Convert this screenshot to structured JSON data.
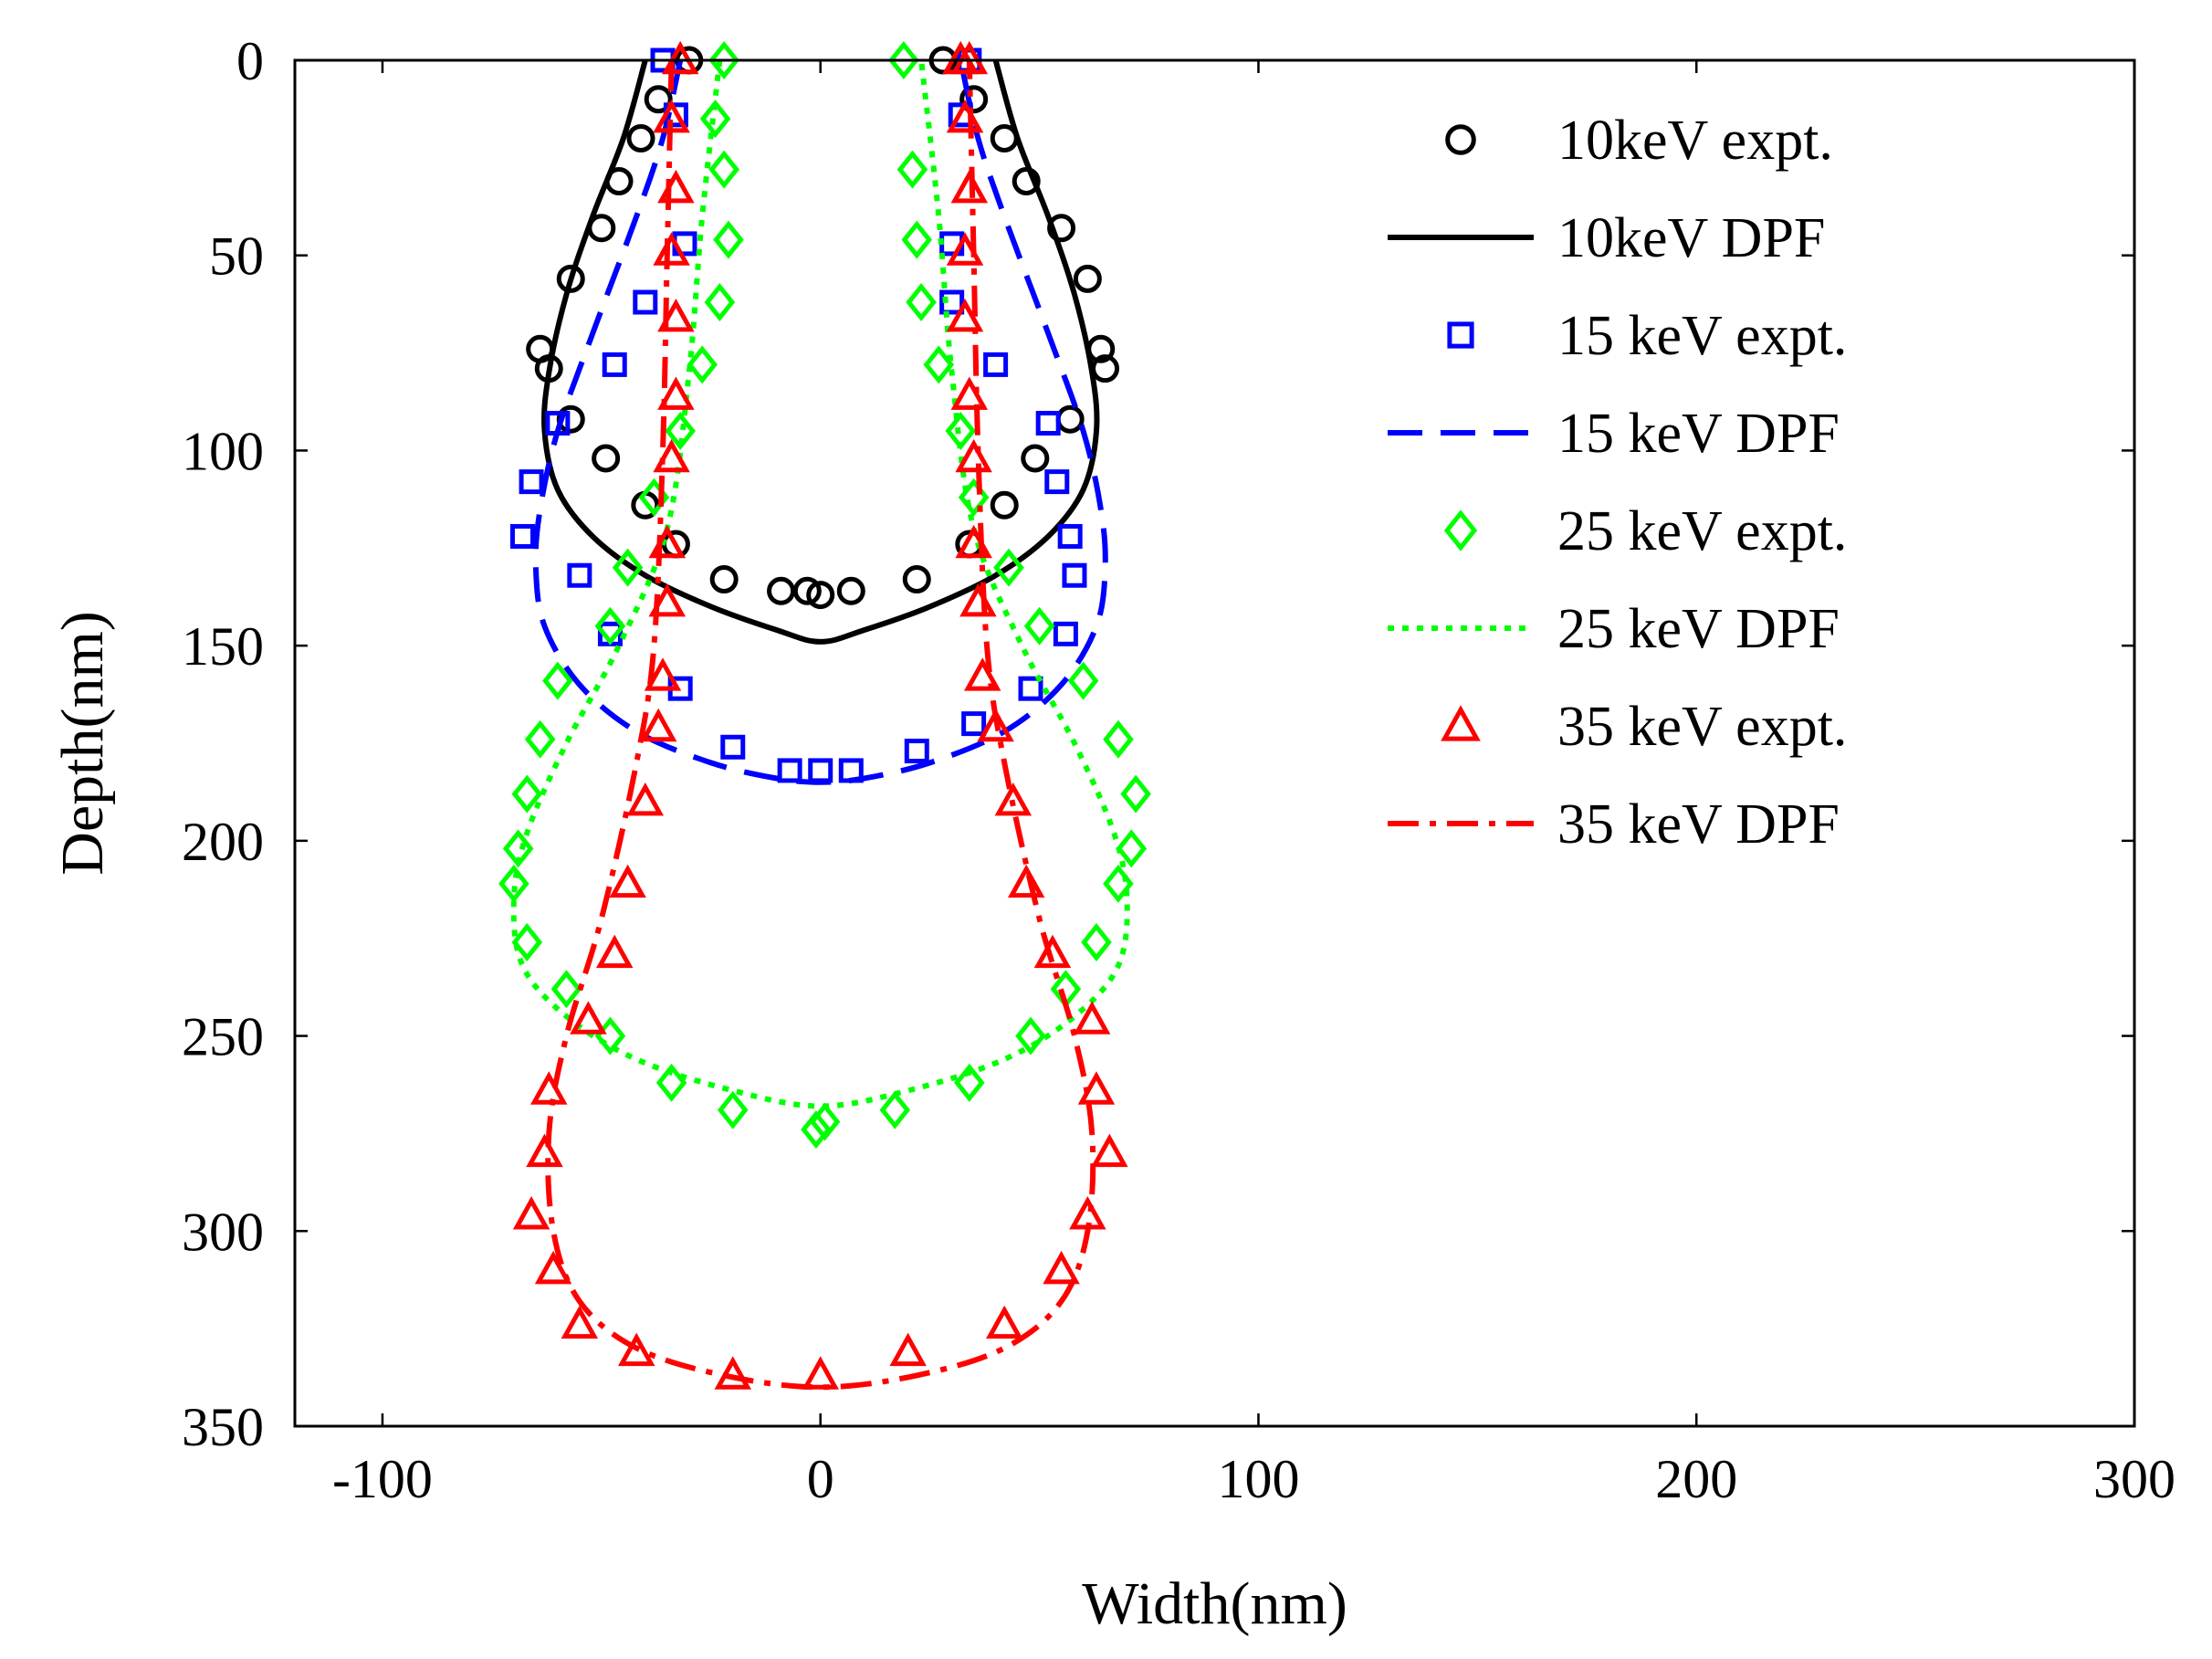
{
  "chart_data": {
    "type": "scatter",
    "title": "",
    "xlabel": "Width(nm)",
    "ylabel": "Depth(nm)",
    "xlim": [
      -120,
      300
    ],
    "ylim": [
      0,
      350
    ],
    "y_reversed": true,
    "x_ticks": [
      -100,
      0,
      100,
      200,
      300
    ],
    "y_ticks": [
      0,
      50,
      100,
      150,
      200,
      250,
      300,
      350
    ],
    "x_tick_labels": [
      "-100",
      "0",
      "100",
      "200",
      "300"
    ],
    "y_tick_labels": [
      "0",
      "50",
      "100",
      "150",
      "200",
      "250",
      "300",
      "350"
    ],
    "grid": false,
    "legend_position": "top-right",
    "series": [
      {
        "name": "10keV expt.",
        "kind": "marker",
        "marker": "circle",
        "color": "#000000",
        "x": [
          -30,
          -37,
          -41,
          -46,
          -50,
          -57,
          -64,
          -62,
          -57,
          -49,
          -40,
          -33,
          -22,
          -9,
          -3,
          0,
          7,
          22,
          34,
          42,
          49,
          57,
          65,
          64,
          61,
          55,
          47,
          42,
          35,
          28
        ],
        "y": [
          0,
          10,
          20,
          31,
          43,
          56,
          74,
          79,
          92,
          102,
          114,
          124,
          133,
          136,
          136,
          137,
          136,
          133,
          124,
          114,
          102,
          92,
          79,
          74,
          56,
          43,
          31,
          20,
          10,
          0
        ]
      },
      {
        "name": "10keV DPF",
        "kind": "line",
        "dash": "solid",
        "color": "#000000",
        "x": [
          -40,
          -45,
          -52,
          -58,
          -62,
          -63,
          -60,
          -52,
          -40,
          -25,
          -10,
          0,
          10,
          25,
          40,
          52,
          60,
          63,
          62,
          58,
          52,
          45,
          40
        ],
        "y": [
          0,
          20,
          40,
          60,
          80,
          95,
          110,
          122,
          132,
          140,
          146,
          149,
          146,
          140,
          132,
          122,
          110,
          95,
          80,
          60,
          40,
          20,
          0
        ],
        "smooth": true
      },
      {
        "name": "15 keV expt.",
        "kind": "marker",
        "marker": "square",
        "color": "#0000ff",
        "x": [
          -36,
          -33,
          -31,
          -40,
          -47,
          -60,
          -66,
          -68,
          -55,
          -48,
          -32,
          -20,
          -7,
          0,
          7,
          22,
          35,
          48,
          56,
          58,
          57,
          54,
          52,
          40,
          30,
          30,
          32,
          34
        ],
        "y": [
          0,
          14,
          47,
          62,
          78,
          93,
          108,
          122,
          132,
          147,
          161,
          176,
          182,
          182,
          182,
          177,
          170,
          161,
          147,
          132,
          122,
          108,
          93,
          78,
          62,
          47,
          14,
          0
        ]
      },
      {
        "name": "15 keV DPF",
        "kind": "line",
        "dash": "dash",
        "color": "#0000ff",
        "x": [
          -32,
          -36,
          -42,
          -52,
          -60,
          -64,
          -65,
          -63,
          -55,
          -42,
          -25,
          -10,
          0,
          10,
          25,
          42,
          55,
          63,
          65,
          64,
          60,
          52,
          42,
          36,
          32
        ],
        "y": [
          0,
          20,
          40,
          70,
          95,
          115,
          130,
          145,
          160,
          172,
          180,
          184,
          185,
          184,
          180,
          172,
          160,
          145,
          130,
          115,
          95,
          70,
          40,
          20,
          0
        ],
        "smooth": true
      },
      {
        "name": "25 keV expt.",
        "kind": "marker",
        "marker": "diamond",
        "color": "#00ff00",
        "x": [
          -22,
          -24,
          -22,
          -21,
          -23,
          -27,
          -32,
          -38,
          -44,
          -48,
          -60,
          -64,
          -67,
          -69,
          -70,
          -67,
          -58,
          -48,
          -34,
          -20,
          -1,
          1,
          17,
          34,
          48,
          56,
          63,
          68,
          71,
          72,
          68,
          60,
          50,
          43,
          35,
          32,
          27,
          23,
          22,
          21,
          19
        ],
        "y": [
          0,
          15,
          28,
          46,
          62,
          78,
          95,
          112,
          130,
          145,
          159,
          174,
          188,
          202,
          211,
          226,
          238,
          250,
          262,
          269,
          274,
          272,
          269,
          262,
          250,
          238,
          226,
          211,
          202,
          188,
          174,
          159,
          145,
          130,
          112,
          95,
          78,
          62,
          46,
          28,
          0
        ]
      },
      {
        "name": "25 keV DPF",
        "kind": "line",
        "dash": "dot",
        "color": "#00ff00",
        "x": [
          -23,
          -27,
          -30,
          -35,
          -46,
          -58,
          -67,
          -70,
          -68,
          -58,
          -42,
          -20,
          0,
          20,
          42,
          58,
          68,
          70,
          67,
          58,
          46,
          35,
          30,
          27,
          23
        ],
        "y": [
          0,
          40,
          80,
          120,
          150,
          175,
          198,
          215,
          232,
          245,
          256,
          264,
          268,
          264,
          256,
          245,
          232,
          215,
          198,
          175,
          150,
          120,
          80,
          40,
          0
        ]
      },
      {
        "name": "35 keV expt.",
        "kind": "marker",
        "marker": "triangle",
        "color": "#ff0000",
        "x": [
          -32,
          -34,
          -33,
          -34,
          -33,
          -33,
          -34,
          -35,
          -35,
          -36,
          -37,
          -40,
          -44,
          -47,
          -53,
          -62,
          -63,
          -66,
          -61,
          -55,
          -42,
          -20,
          0,
          20,
          42,
          55,
          61,
          66,
          63,
          62,
          53,
          47,
          44,
          40,
          37,
          36,
          35,
          35,
          34,
          33,
          33,
          34,
          33,
          34,
          32
        ],
        "y": [
          0,
          15,
          33,
          49,
          66,
          86,
          102,
          124,
          139,
          158,
          171,
          190,
          211,
          229,
          246,
          264,
          280,
          296,
          310,
          324,
          331,
          337,
          337,
          331,
          324,
          310,
          296,
          280,
          264,
          246,
          229,
          211,
          190,
          171,
          158,
          139,
          124,
          102,
          86,
          66,
          49,
          33,
          15,
          0,
          0
        ]
      },
      {
        "name": "35 keV DPF",
        "kind": "line",
        "dash": "dashdot",
        "color": "#ff0000",
        "x": [
          -34,
          -35,
          -36,
          -38,
          -42,
          -50,
          -58,
          -62,
          -61,
          -55,
          -42,
          -22,
          0,
          22,
          42,
          55,
          61,
          62,
          58,
          50,
          42,
          38,
          36,
          35,
          34
        ],
        "y": [
          0,
          50,
          100,
          150,
          180,
          220,
          250,
          275,
          300,
          318,
          330,
          337,
          340,
          337,
          330,
          318,
          300,
          275,
          250,
          220,
          180,
          150,
          100,
          50,
          0
        ]
      }
    ]
  }
}
